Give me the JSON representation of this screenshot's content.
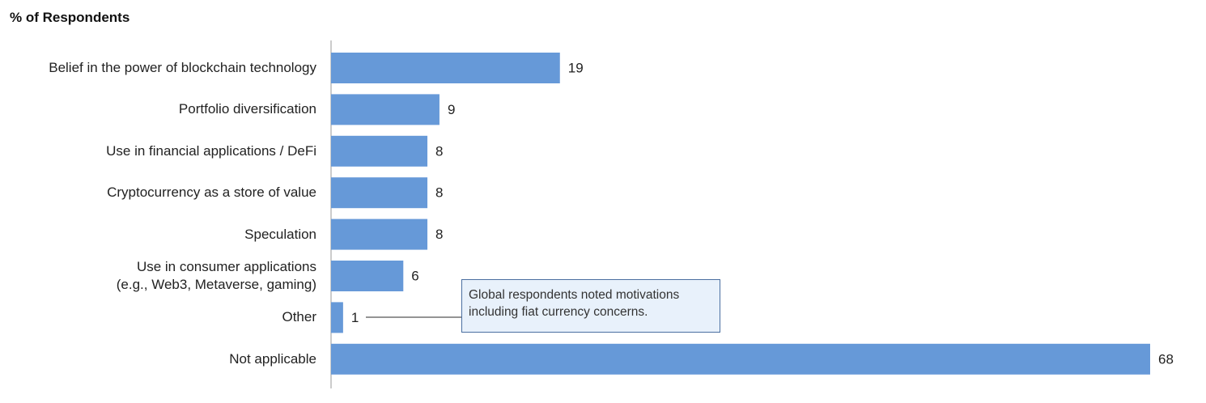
{
  "chart_data": {
    "type": "bar",
    "orientation": "horizontal",
    "title": "% of Respondents",
    "categories": [
      "Belief in the power of blockchain technology",
      "Portfolio diversification",
      "Use in financial applications / DeFi",
      "Cryptocurrency as a store of value",
      "Speculation",
      "Use in consumer applications\n(e.g., Web3, Metaverse, gaming)",
      "Other",
      "Not applicable"
    ],
    "values": [
      19,
      9,
      8,
      8,
      8,
      6,
      1,
      68
    ],
    "color": "#6699d8",
    "annotation": "Global respondents noted motivations\nincluding fiat currency concerns."
  }
}
